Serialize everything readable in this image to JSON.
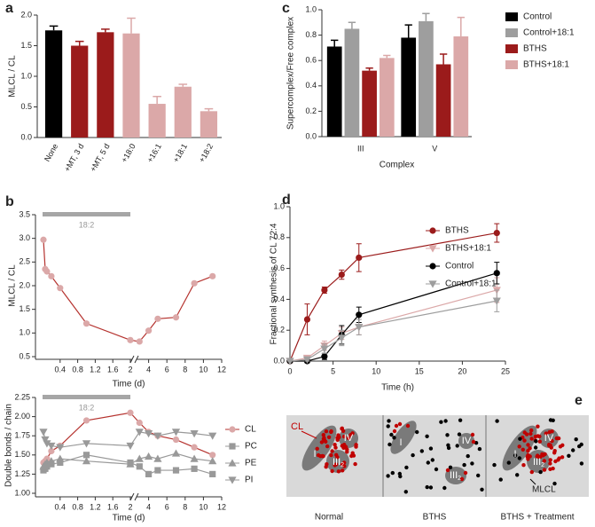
{
  "panel_labels": [
    "a",
    "b",
    "c",
    "d",
    "e"
  ],
  "chart_data": [
    {
      "type": "bar",
      "ylabel": "MLCL / CL",
      "categories": [
        "None",
        "+MT, 3 d",
        "+MT, 5 d",
        "+18:0",
        "+16:1",
        "+18:1",
        "+18:2"
      ],
      "values": [
        1.75,
        1.5,
        1.72,
        1.7,
        0.55,
        0.83,
        0.43
      ],
      "errors": [
        0.07,
        0.07,
        0.05,
        0.25,
        0.12,
        0.04,
        0.04
      ],
      "colors": [
        "#000000",
        "#9b1b1b",
        "#9b1b1b",
        "#dba8a8",
        "#dba8a8",
        "#dba8a8",
        "#dba8a8"
      ],
      "ylim": [
        0,
        2
      ],
      "yticks": [
        {
          "value": 0,
          "label": "0.0"
        },
        0.5,
        {
          "value": 1,
          "label": "1.0"
        },
        1.5,
        {
          "value": 2,
          "label": "2.0"
        }
      ]
    },
    {
      "type": "line",
      "ylabel": "MLCL / CL",
      "xlabel": "Time (d)",
      "annotation": "18:2",
      "annotation_span": [
        0,
        2
      ],
      "x": [
        0.02,
        0.06,
        0.1,
        0.2,
        0.4,
        1,
        2,
        3,
        4,
        5,
        7,
        9,
        11
      ],
      "values": [
        2.97,
        2.35,
        2.3,
        2.2,
        1.95,
        1.2,
        0.85,
        0.82,
        1.05,
        1.3,
        1.33,
        2.05,
        2.2
      ],
      "color": "#b5322e",
      "marker_color": "#dba8a8",
      "marker": "circle",
      "xlim": [
        0,
        12
      ],
      "xbreak": 2,
      "xticks": [
        0.4,
        0.8,
        1.2,
        1.6,
        2,
        4,
        6,
        8,
        10,
        12
      ],
      "ylim": [
        0.5,
        3.5
      ],
      "yticks": [
        0.5,
        {
          "value": 1,
          "label": "1.0"
        },
        1.5,
        {
          "value": 2,
          "label": "2.0"
        },
        2.5,
        {
          "value": 3,
          "label": "3.0"
        },
        3.5
      ]
    },
    {
      "type": "line",
      "ylabel": "Double bonds / chain",
      "xlabel": "Time (d)",
      "annotation": "18:2",
      "annotation_span": [
        0,
        2
      ],
      "x": [
        0.02,
        0.06,
        0.1,
        0.2,
        0.4,
        1,
        2,
        3,
        4,
        5,
        7,
        9,
        11
      ],
      "series": [
        {
          "name": "CL",
          "color": "#b5322e",
          "marker_color": "#dba8a8",
          "marker": "circle",
          "values": [
            1.4,
            1.42,
            1.45,
            1.55,
            1.62,
            1.95,
            2.05,
            1.92,
            1.8,
            1.75,
            1.7,
            1.6,
            1.5
          ]
        },
        {
          "name": "PC",
          "color": "#999999",
          "marker_color": "#999999",
          "marker": "square",
          "values": [
            1.3,
            1.32,
            1.35,
            1.38,
            1.4,
            1.5,
            1.4,
            1.35,
            1.25,
            1.3,
            1.3,
            1.32,
            1.25
          ]
        },
        {
          "name": "PE",
          "color": "#999999",
          "marker_color": "#999999",
          "marker": "triangle",
          "values": [
            1.35,
            1.38,
            1.4,
            1.42,
            1.45,
            1.42,
            1.38,
            1.45,
            1.48,
            1.45,
            1.52,
            1.45,
            1.42
          ]
        },
        {
          "name": "PI",
          "color": "#999999",
          "marker_color": "#999999",
          "marker": "triangle-down",
          "values": [
            1.8,
            1.7,
            1.65,
            1.62,
            1.6,
            1.65,
            1.62,
            1.8,
            1.78,
            1.75,
            1.8,
            1.78,
            1.75
          ]
        }
      ],
      "legend": "right",
      "xlim": [
        0,
        12
      ],
      "xbreak": 2,
      "xticks": [
        0.4,
        0.8,
        1.2,
        1.6,
        2,
        4,
        6,
        8,
        10,
        12
      ],
      "ylim": [
        1,
        2.25
      ],
      "yticks": [
        {
          "value": 1,
          "label": "1.00"
        },
        1.25,
        {
          "value": 1.5,
          "label": "1.50"
        },
        1.75,
        {
          "value": 2,
          "label": "2.00"
        },
        2.25
      ]
    },
    {
      "type": "bar",
      "ylabel": "Supercomplex/Free complex",
      "xlabel": "Complex",
      "categories": [
        "III",
        "V"
      ],
      "series": [
        {
          "name": "Control",
          "color": "#000000",
          "values": [
            0.71,
            0.78
          ],
          "errors": [
            0.05,
            0.1
          ]
        },
        {
          "name": "Control+18:1",
          "color": "#9e9e9e",
          "values": [
            0.85,
            0.91
          ],
          "errors": [
            0.05,
            0.06
          ]
        },
        {
          "name": "BTHS",
          "color": "#9b1b1b",
          "values": [
            0.52,
            0.57
          ],
          "errors": [
            0.02,
            0.08
          ]
        },
        {
          "name": "BTHS+18:1",
          "color": "#dba8a8",
          "values": [
            0.62,
            0.79
          ],
          "errors": [
            0.02,
            0.15
          ]
        }
      ],
      "legend": "right",
      "ylim": [
        0,
        1
      ],
      "yticks": [
        {
          "value": 0,
          "label": "0.0"
        },
        0.2,
        0.4,
        0.6,
        0.8,
        {
          "value": 1,
          "label": "1.0"
        }
      ]
    },
    {
      "type": "line",
      "ylabel": "Fractional synthesis of CL 72:4",
      "xlabel": "Time (h)",
      "x": [
        0,
        2,
        4,
        6,
        8,
        24
      ],
      "series": [
        {
          "name": "BTHS",
          "color": "#9b1b1b",
          "marker": "circle",
          "values": [
            0,
            0.27,
            0.46,
            0.56,
            0.67,
            0.83
          ],
          "errors": [
            0,
            0.1,
            0.02,
            0.03,
            0.09,
            0.06
          ]
        },
        {
          "name": "BTHS+18:1",
          "color": "#dba8a8",
          "marker": "triangle-down",
          "values": [
            0,
            0.02,
            0.1,
            0.18,
            0.22,
            0.46
          ],
          "errors": [
            0,
            0.01,
            0.03,
            0.04,
            0.05,
            0.08
          ]
        },
        {
          "name": "Control",
          "color": "#000000",
          "marker": "circle",
          "values": [
            0,
            0,
            0.03,
            0.17,
            0.3,
            0.57
          ],
          "errors": [
            0,
            0.01,
            0.02,
            0.06,
            0.05,
            0.07
          ]
        },
        {
          "name": "Control+18:1",
          "color": "#9e9e9e",
          "marker": "triangle-down",
          "values": [
            0,
            0.01,
            0.08,
            0.15,
            0.22,
            0.39
          ],
          "errors": [
            0,
            0.01,
            0.03,
            0.05,
            0.05,
            0.07
          ]
        }
      ],
      "legend": "upper right",
      "xlim": [
        0,
        25
      ],
      "xticks": [
        0,
        5,
        10,
        15,
        20,
        25
      ],
      "ylim": [
        0,
        1
      ],
      "yticks": [
        {
          "value": 0,
          "label": "0.0"
        },
        0.2,
        0.4,
        0.6,
        0.8,
        {
          "value": 1,
          "label": "1.0"
        }
      ]
    }
  ],
  "diagram": {
    "lipid_label": "CL",
    "complexes": [
      "I",
      "IV",
      "III"
    ],
    "subscript": "2",
    "mlcl_label": "MLCL",
    "captions": [
      "Normal",
      "BTHS",
      "BTHS + Treatment"
    ]
  }
}
